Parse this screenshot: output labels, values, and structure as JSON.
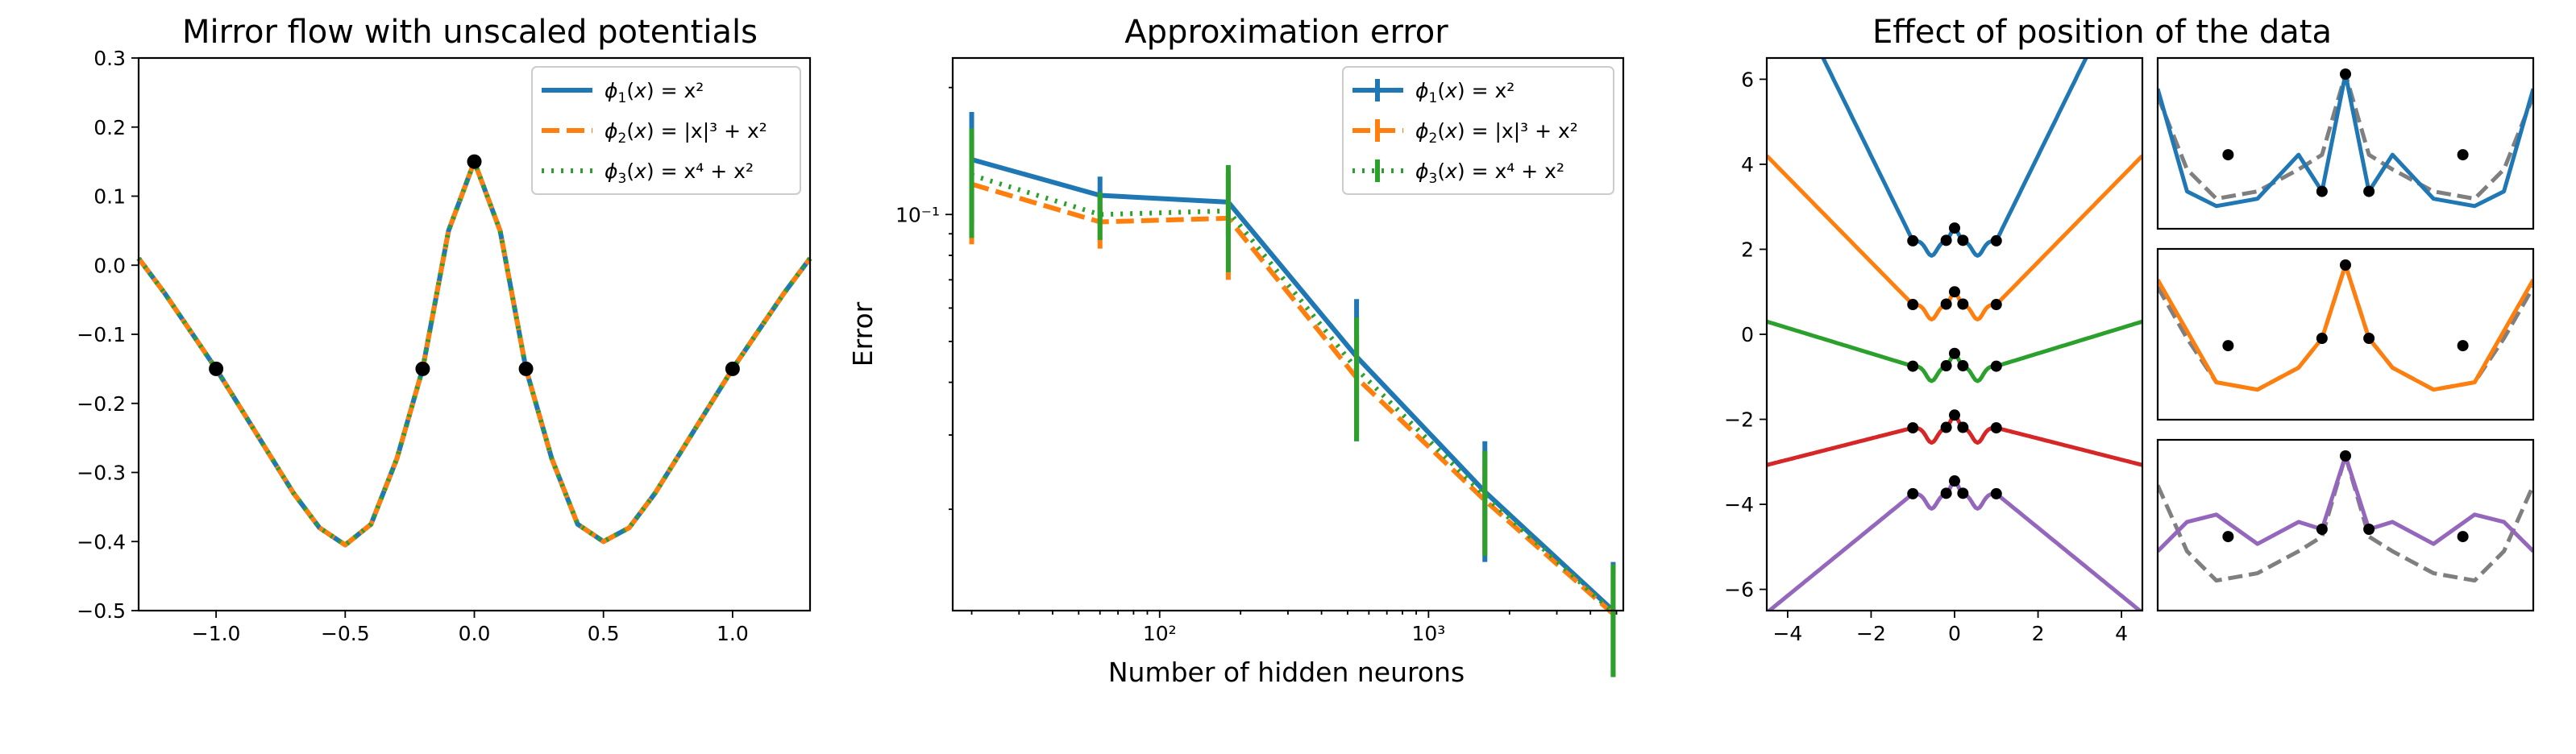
{
  "colors": {
    "blue": "#1f77b4",
    "orange": "#ff7f0e",
    "green": "#2ca02c",
    "red": "#d62728",
    "purple": "#9467bd",
    "gray": "#7f7f7f",
    "black": "#000000"
  },
  "chart_data": [
    {
      "type": "line",
      "title": "Mirror flow with unscaled potentials",
      "xlabel": "",
      "ylabel": "",
      "xlim": [
        -1.3,
        1.3
      ],
      "ylim": [
        -0.5,
        0.3
      ],
      "xticks": [
        "−1.0",
        "−0.5",
        "0.0",
        "0.5",
        "1.0"
      ],
      "xtick_values": [
        -1.0,
        -0.5,
        0.0,
        0.5,
        1.0
      ],
      "yticks": [
        "−0.5",
        "−0.4",
        "−0.3",
        "−0.2",
        "−0.1",
        "0.0",
        "0.1",
        "0.2",
        "0.3"
      ],
      "ytick_values": [
        -0.5,
        -0.4,
        -0.3,
        -0.2,
        -0.1,
        0.0,
        0.1,
        0.2,
        0.3
      ],
      "grid": false,
      "legend_position": "top-right",
      "series": [
        {
          "name": "ϕ1(x) = x²",
          "color": "#1f77b4",
          "style": "solid"
        },
        {
          "name": "ϕ2(x) = |x|³ + x²",
          "color": "#ff7f0e",
          "style": "dashed"
        },
        {
          "name": "ϕ3(x) = x⁴ + x²",
          "color": "#2ca02c",
          "style": "dotted"
        }
      ],
      "curve_x": [
        -1.3,
        -1.2,
        -1.1,
        -1.0,
        -0.9,
        -0.8,
        -0.7,
        -0.6,
        -0.5,
        -0.4,
        -0.3,
        -0.2,
        -0.1,
        0.0,
        0.1,
        0.2,
        0.3,
        0.4,
        0.5,
        0.6,
        0.7,
        0.8,
        0.9,
        1.0,
        1.1,
        1.2,
        1.3
      ],
      "curve_y": [
        0.01,
        -0.04,
        -0.095,
        -0.15,
        -0.21,
        -0.27,
        -0.33,
        -0.38,
        -0.405,
        -0.375,
        -0.28,
        -0.15,
        0.05,
        0.15,
        0.05,
        -0.15,
        -0.28,
        -0.375,
        -0.4,
        -0.38,
        -0.33,
        -0.27,
        -0.21,
        -0.15,
        -0.095,
        -0.04,
        0.01
      ],
      "points": [
        [
          -1.0,
          -0.15
        ],
        [
          -0.2,
          -0.15
        ],
        [
          0.0,
          0.15
        ],
        [
          0.2,
          -0.15
        ],
        [
          1.0,
          -0.15
        ]
      ]
    },
    {
      "type": "line",
      "title": "Approximation error",
      "xlabel": "Number of hidden neurons",
      "ylabel": "Error",
      "xscale": "log",
      "yscale": "log",
      "xlim": [
        17,
        5300
      ],
      "ylim": [
        0.0115,
        0.235
      ],
      "xticks": [
        "10²",
        "10³"
      ],
      "xtick_values": [
        100,
        1000
      ],
      "yticks": [
        "10⁻¹"
      ],
      "ytick_values": [
        0.1
      ],
      "grid": false,
      "legend_position": "top-right",
      "x": [
        20,
        60,
        180,
        540,
        1620,
        4860
      ],
      "series": [
        {
          "name": "ϕ1(x) = x²",
          "color": "#1f77b4",
          "style": "solid",
          "values": [
            0.135,
            0.111,
            0.107,
            0.046,
            0.022,
            0.0115
          ],
          "errors": [
            0.04,
            0.012,
            0.018,
            0.017,
            0.007,
            0.0035
          ]
        },
        {
          "name": "ϕ2(x) = |x|³ + x²",
          "color": "#ff7f0e",
          "style": "dashed",
          "values": [
            0.118,
            0.096,
            0.098,
            0.041,
            0.021,
            0.0113
          ],
          "errors": [
            0.033,
            0.013,
            0.028,
            0.011,
            0.005,
            0.0032
          ]
        },
        {
          "name": "ϕ3(x) = x⁴ + x²",
          "color": "#2ca02c",
          "style": "dotted",
          "values": [
            0.124,
            0.1,
            0.102,
            0.043,
            0.0215,
            0.0114
          ],
          "errors": [
            0.036,
            0.013,
            0.029,
            0.014,
            0.006,
            0.0034
          ]
        }
      ]
    },
    {
      "type": "line",
      "title": "Effect of position of the data",
      "xlabel": "",
      "ylabel": "",
      "xlim": [
        -4.5,
        4.5
      ],
      "ylim": [
        -6.5,
        6.5
      ],
      "xticks": [
        "−4",
        "−2",
        "0",
        "2",
        "4"
      ],
      "xtick_values": [
        -4,
        -2,
        0,
        2,
        4
      ],
      "yticks": [
        "−6",
        "−4",
        "−2",
        "0",
        "2",
        "4",
        "6"
      ],
      "ytick_values": [
        -6,
        -4,
        -2,
        0,
        2,
        4,
        6
      ],
      "grid": false,
      "series": [
        {
          "color": "#1f77b4",
          "offset": 2.2,
          "slope": 2.0
        },
        {
          "color": "#ff7f0e",
          "offset": 0.7,
          "slope": 1.0
        },
        {
          "color": "#2ca02c",
          "offset": -0.75,
          "slope": 0.3
        },
        {
          "color": "#d62728",
          "offset": -2.2,
          "slope": -0.25
        },
        {
          "color": "#9467bd",
          "offset": -3.75,
          "slope": -0.8
        }
      ],
      "data_x": [
        -1.0,
        -0.2,
        0.0,
        0.2,
        1.0
      ]
    },
    {
      "type": "line",
      "title": "",
      "panels": [
        {
          "color": "#1f77b4",
          "curve_y": [
            0.9,
            0.2,
            0.1,
            0.15,
            0.45,
            0.2,
            1.0,
            0.2,
            0.45,
            0.15,
            0.1,
            0.2,
            0.9
          ],
          "ref_y": [
            0.85,
            0.35,
            0.15,
            0.2,
            0.35,
            0.45,
            1.0,
            0.45,
            0.35,
            0.2,
            0.15,
            0.35,
            0.85
          ]
        },
        {
          "color": "#ff7f0e",
          "curve_y": [
            0.9,
            0.55,
            0.2,
            0.15,
            0.3,
            0.5,
            1.0,
            0.5,
            0.3,
            0.15,
            0.2,
            0.55,
            0.9
          ],
          "ref_y": [
            0.85,
            0.5,
            0.2,
            0.15,
            0.3,
            0.5,
            1.0,
            0.5,
            0.3,
            0.15,
            0.2,
            0.5,
            0.85
          ]
        },
        {
          "color": "#9467bd",
          "curve_y": [
            0.35,
            0.55,
            0.6,
            0.4,
            0.55,
            0.5,
            1.0,
            0.5,
            0.55,
            0.4,
            0.6,
            0.55,
            0.35
          ],
          "ref_y": [
            0.8,
            0.35,
            0.15,
            0.2,
            0.35,
            0.45,
            1.0,
            0.45,
            0.35,
            0.2,
            0.15,
            0.35,
            0.8
          ]
        }
      ],
      "curve_x": [
        -1.6,
        -1.35,
        -1.1,
        -0.75,
        -0.4,
        -0.2,
        0.0,
        0.2,
        0.4,
        0.75,
        1.1,
        1.35,
        1.6
      ],
      "data_x": [
        -1.0,
        -0.2,
        0.0,
        0.2,
        1.0
      ]
    }
  ]
}
